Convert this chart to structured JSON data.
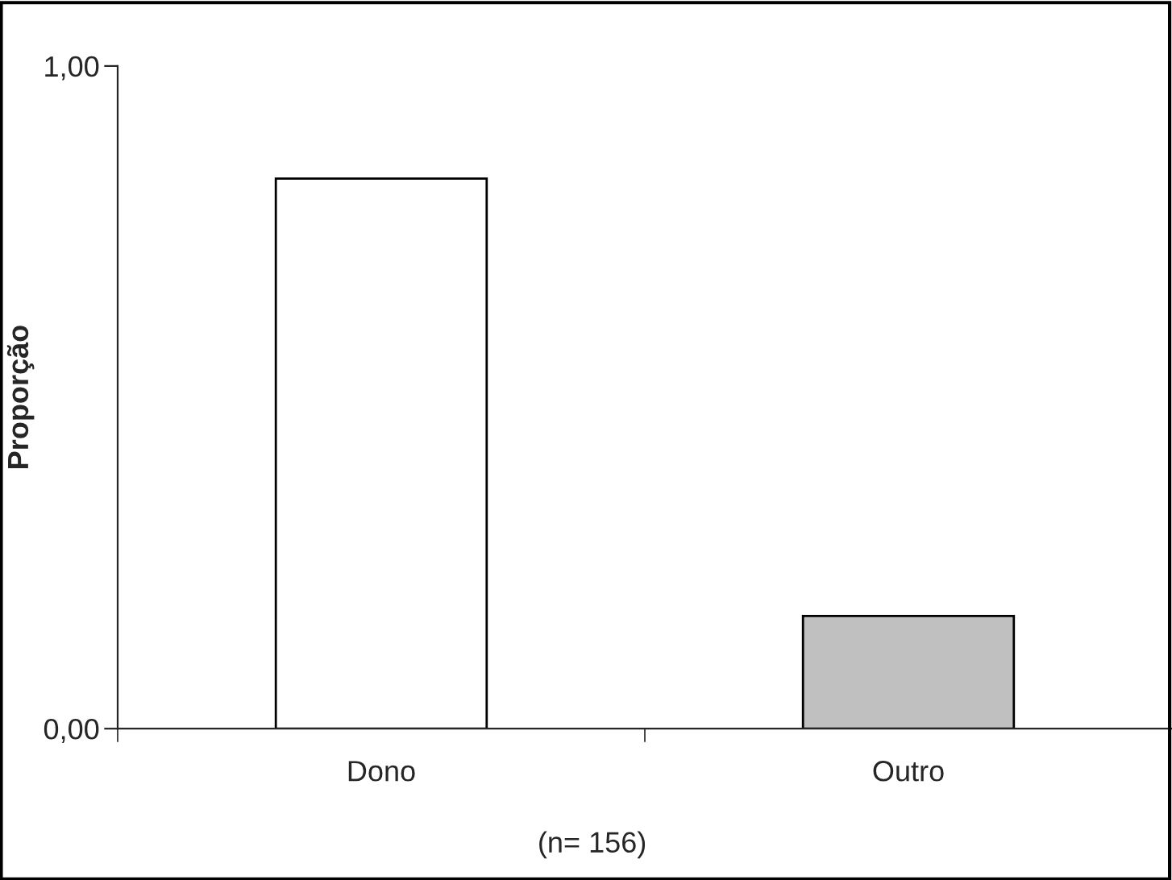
{
  "chart_data": {
    "type": "bar",
    "ylabel": "Proporção",
    "categories": [
      "Dono",
      "Outro"
    ],
    "values": [
      0.83,
      0.17
    ],
    "colors": [
      "#ffffff",
      "#c0c0c0"
    ],
    "ylim": [
      0,
      1
    ],
    "yticks": [
      {
        "value": 0,
        "label": "0,00"
      },
      {
        "value": 1,
        "label": "1,00"
      }
    ],
    "grid": false,
    "legend": false,
    "annotations": [
      "(n= 156)"
    ]
  }
}
